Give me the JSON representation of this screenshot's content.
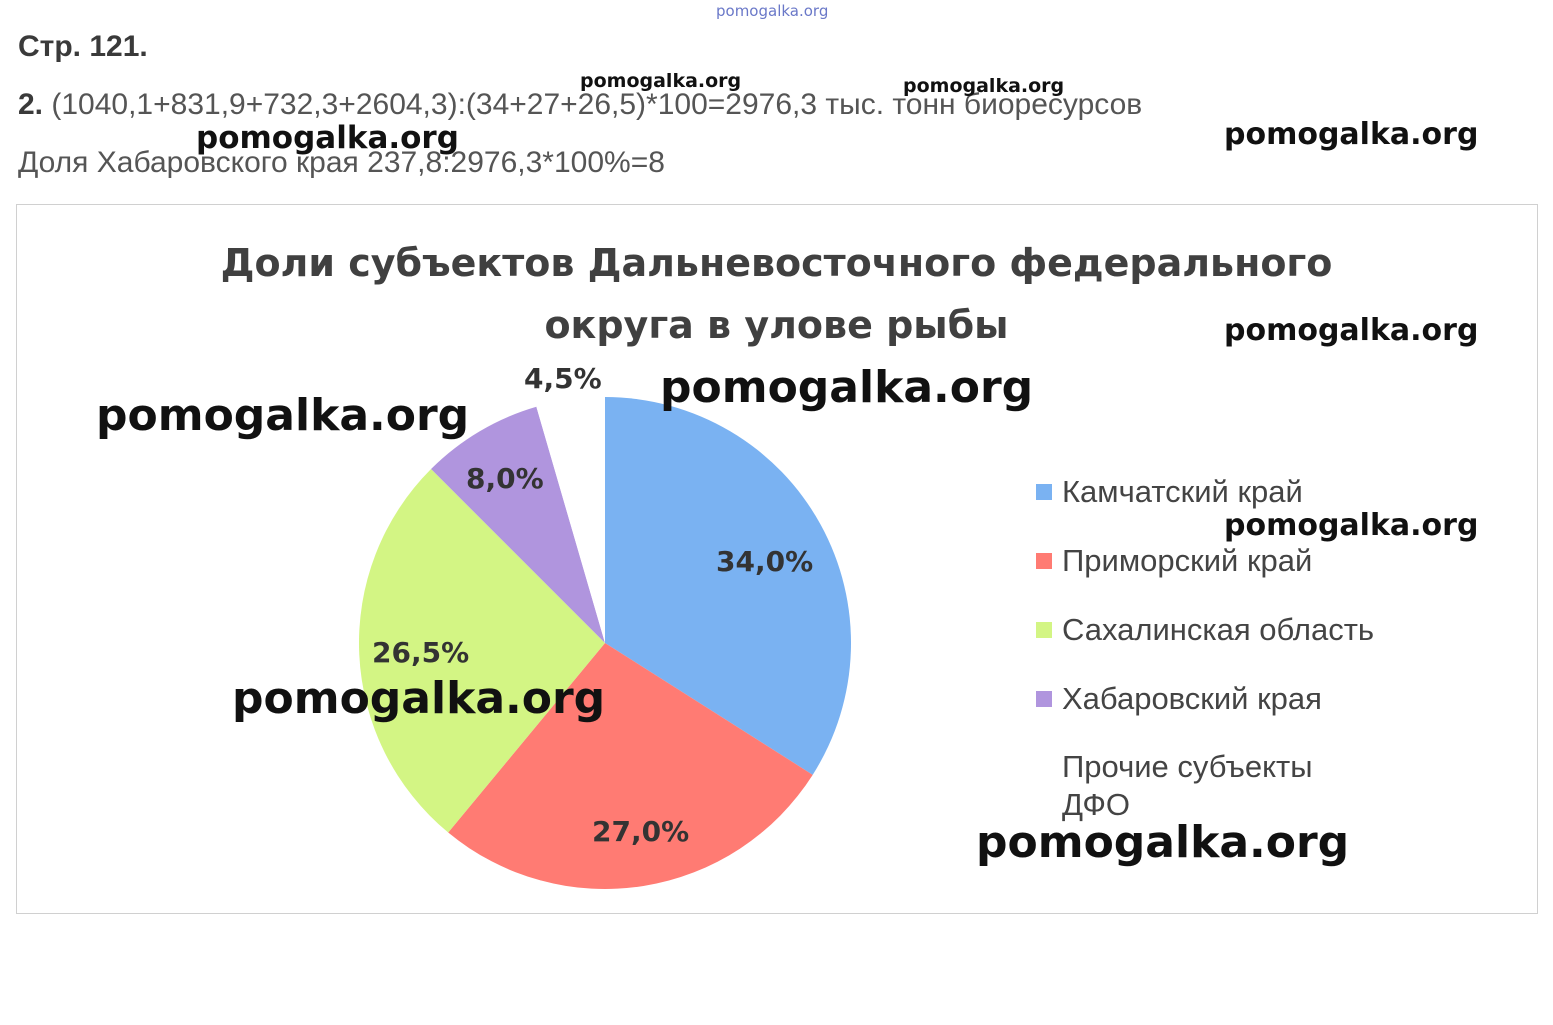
{
  "watermarks": [
    "pomogalka.org",
    "pomogalka.org",
    "pomogalka.org",
    "pomogalka.org",
    "pomogalka.org",
    "pomogalka.org",
    "pomogalka.org",
    "pomogalka.org",
    "pomogalka.org",
    "pomogalka.org",
    "pomogalka.org"
  ],
  "heading": "Стр. 121.",
  "line1_number": "2.",
  "line1_text": " (1040,1+831,9+732,3+2604,3):(34+27+26,5)*100=2976,3 тыс. тонн биоресурсов",
  "line2_text": "Доля Хабаровского края 237,8:2976,3*100%=8",
  "chart_data": {
    "type": "pie",
    "title_line1": "Доли субъектов Дальневосточного федерального",
    "title_line2": "округа в улове рыбы",
    "legend_position": "right",
    "slices": [
      {
        "name": "Камчатский край",
        "value": 34.0,
        "label": "34,0%",
        "color": "#7ab2f2"
      },
      {
        "name": "Приморский край",
        "value": 27.0,
        "label": "27,0%",
        "color": "#ff7b73"
      },
      {
        "name": "Сахалинская область",
        "value": 26.5,
        "label": "26,5%",
        "color": "#d3f584"
      },
      {
        "name": "Хабаровский края",
        "value": 8.0,
        "label": "8,0%",
        "color": "#b095de"
      },
      {
        "name": "Прочие субъекты ДФО",
        "value": 4.5,
        "label": "4,5%",
        "color": "#ffffff"
      }
    ]
  }
}
